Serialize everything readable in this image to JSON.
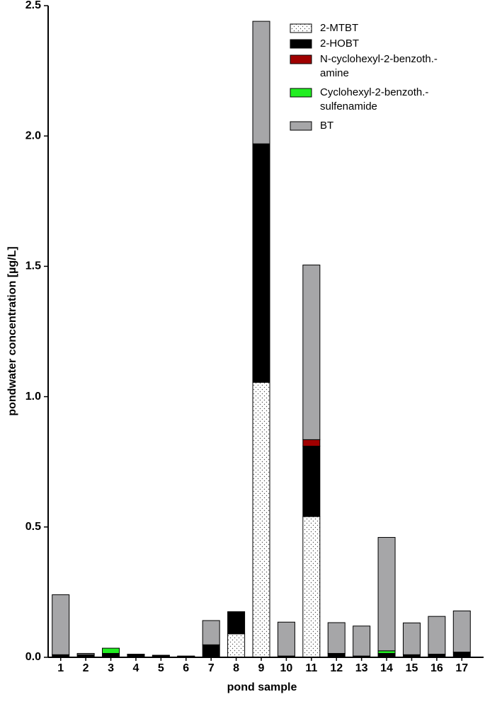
{
  "chart_data": {
    "type": "stacked-bar",
    "x_label": "pond sample",
    "y_label": "pondwater concentration [µg/L]",
    "categories": [
      "1",
      "2",
      "3",
      "4",
      "5",
      "6",
      "7",
      "8",
      "9",
      "10",
      "11",
      "12",
      "13",
      "14",
      "15",
      "16",
      "17"
    ],
    "series": [
      {
        "name": "2-MTBT",
        "color": "#ffffff",
        "fill_style": "dots",
        "values": [
          0,
          0,
          0,
          0,
          0,
          0,
          0,
          0.09,
          1.055,
          0,
          0.54,
          0,
          0,
          0,
          0,
          0,
          0
        ]
      },
      {
        "name": "2-HOBT",
        "color": "#000000",
        "values": [
          0.01,
          0.01,
          0.015,
          0.01,
          0.006,
          0.004,
          0.048,
          0.085,
          0.915,
          0.005,
          0.27,
          0.015,
          0.005,
          0.015,
          0.01,
          0.012,
          0.02
        ]
      },
      {
        "name": "N-cyclohexyl-2-benzoth.-\namine",
        "color": "#a00000",
        "values": [
          0,
          0,
          0,
          0,
          0,
          0,
          0,
          0,
          0,
          0,
          0.025,
          0,
          0,
          0,
          0,
          0,
          0
        ]
      },
      {
        "name": "Cyclohexyl-2-benzoth.-\nsulfenamide",
        "color": "#22ee22",
        "values": [
          0,
          0,
          0.02,
          0,
          0,
          0,
          0,
          0,
          0,
          0,
          0,
          0,
          0,
          0.01,
          0,
          0,
          0
        ]
      },
      {
        "name": "BT",
        "color": "#a6a6a8",
        "values": [
          0.23,
          0.005,
          0,
          0.002,
          0.002,
          0.001,
          0.093,
          0,
          0.47,
          0.13,
          0.67,
          0.118,
          0.115,
          0.435,
          0.122,
          0.145,
          0.158
        ]
      }
    ],
    "ylim": [
      0,
      2.5
    ],
    "yticks": [
      {
        "value": 0,
        "label": "0.0"
      },
      0.5,
      {
        "value": 1,
        "label": "1.0"
      },
      1.5,
      {
        "value": 2,
        "label": "2.0"
      },
      2.5
    ]
  }
}
